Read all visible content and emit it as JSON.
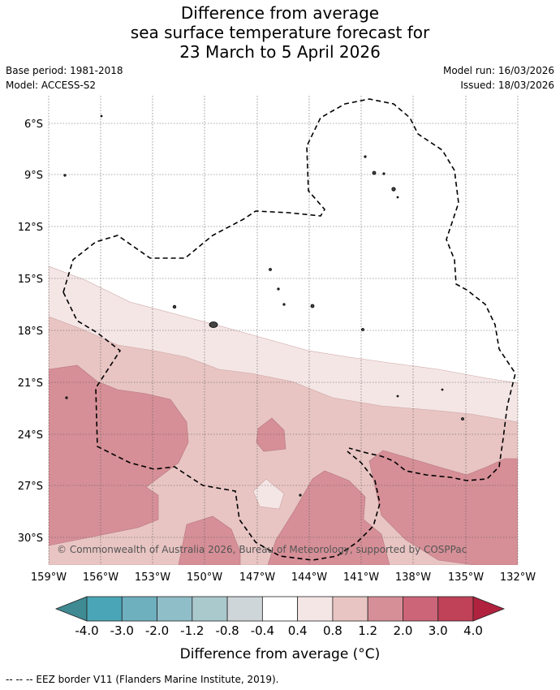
{
  "title_lines": [
    "Difference from average",
    "sea surface temperature forecast for",
    "23 March to 5 April 2026"
  ],
  "meta_left": [
    "Base period: 1981-2018",
    "Model: ACCESS-S2"
  ],
  "meta_right": [
    "Model run: 16/03/2026",
    "Issued: 18/03/2026"
  ],
  "lat_labels": [
    "6°S",
    "9°S",
    "12°S",
    "15°S",
    "18°S",
    "21°S",
    "24°S",
    "27°S",
    "30°S"
  ],
  "lon_labels": [
    "159°W",
    "156°W",
    "153°W",
    "150°W",
    "147°W",
    "144°W",
    "141°W",
    "138°W",
    "135°W",
    "132°W"
  ],
  "copyright": "© Commonwealth of Australia 2026, Bureau of Meteorology, supported by COSPPac",
  "colorbar": {
    "ticks": [
      "-4.0",
      "-3.0",
      "-2.0",
      "-1.2",
      "-0.8",
      "-0.4",
      "0.4",
      "0.8",
      "1.2",
      "2.0",
      "3.0",
      "4.0"
    ],
    "colors": [
      "#3f8a93",
      "#4aa6b6",
      "#6fb0bf",
      "#8fbdc8",
      "#aac9cd",
      "#cfd6d9",
      "#ffffff",
      "#f5e6e6",
      "#e8c5c3",
      "#d68f97",
      "#cc6577",
      "#bf4258",
      "#b0223e"
    ],
    "label": "Difference from average (°C)"
  },
  "footer": "--  --  -- EEZ border V11 (Flanders Marine Institute, 2019)."
}
